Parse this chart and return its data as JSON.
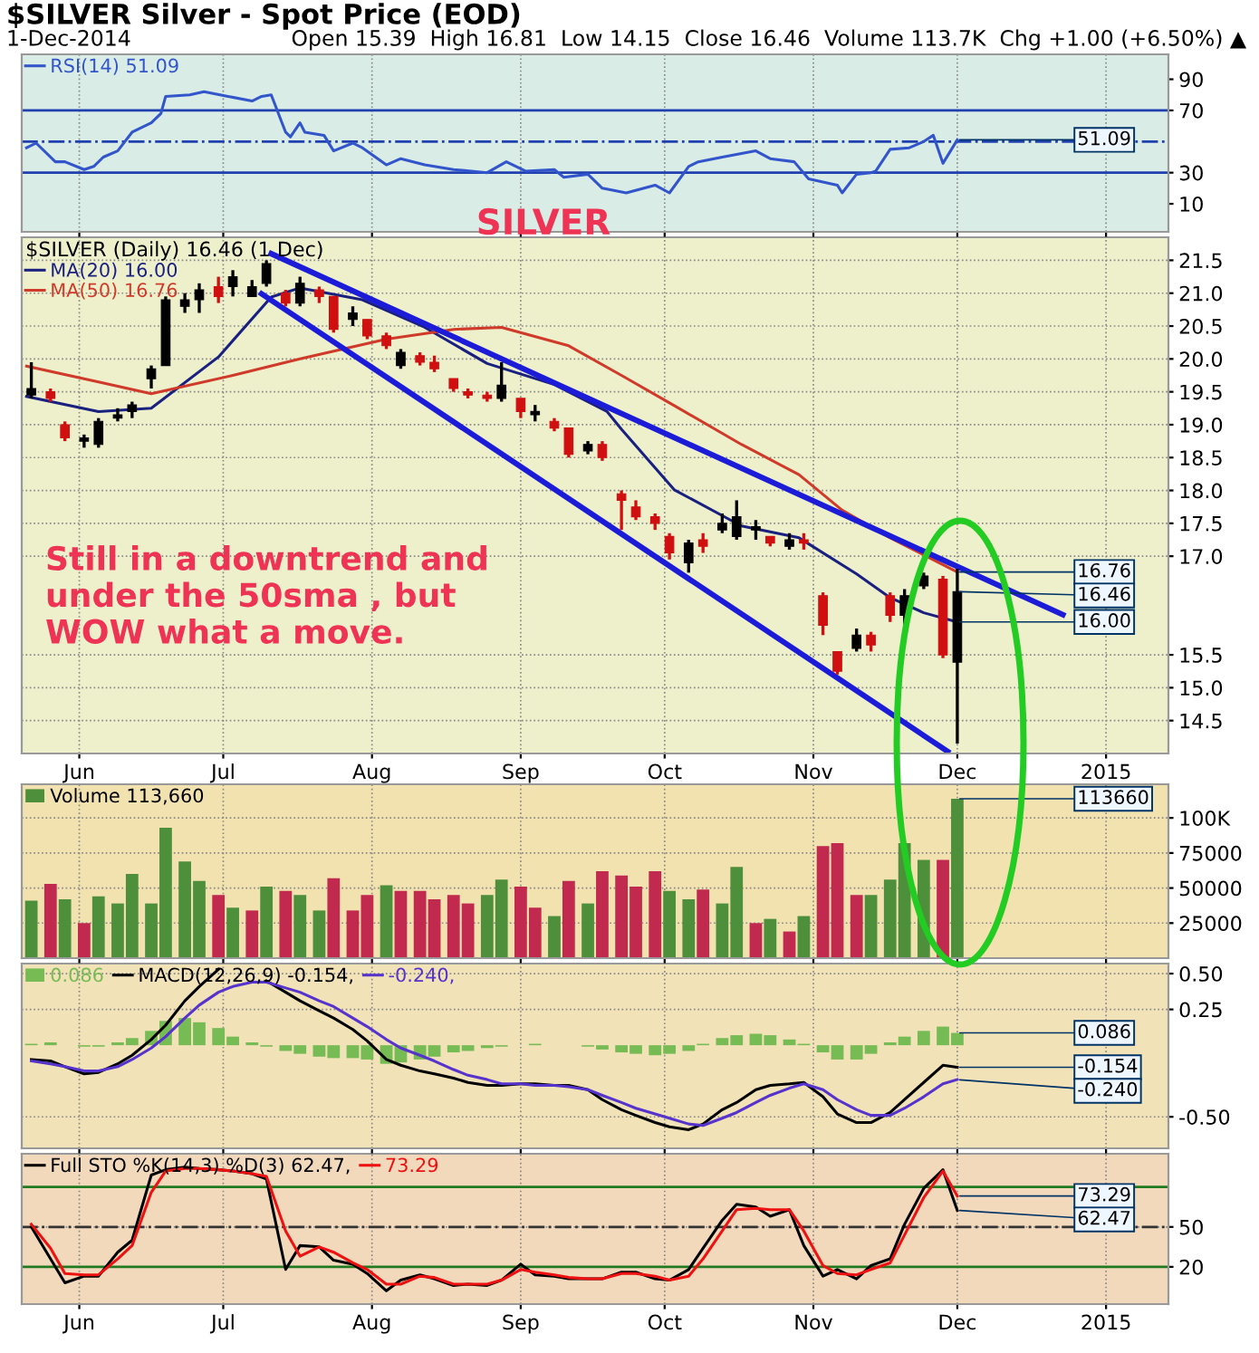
{
  "chart_data": [
    {
      "type": "line",
      "title": "$SILVER Silver - Spot Price (EOD)",
      "subtitle": "1-Dec-2014",
      "annotations": [
        "Open 15.39  High 16.81  Low 14.15  Close 16.46  Volume 113.7K  Chg +1.00 (+6.50%) ▲",
        "SILVER",
        {
          "text": "51.09",
          "x": "2014-12-01",
          "y": 51.09
        }
      ],
      "series": [
        {
          "name": "RSI(14) 51.09",
          "color": "#3355cc",
          "x": [
            "2014-05-21",
            "2014-05-23",
            "2014-05-27",
            "2014-05-29",
            "2014-06-02",
            "2014-06-04",
            "2014-06-06",
            "2014-06-09",
            "2014-06-12",
            "2014-06-16",
            "2014-06-18",
            "2014-06-19",
            "2014-06-24",
            "2014-06-27",
            "2014-07-02",
            "2014-07-07",
            "2014-07-09",
            "2014-07-11",
            "2014-07-14",
            "2014-07-15",
            "2014-07-17",
            "2014-07-18",
            "2014-07-22",
            "2014-07-24",
            "2014-07-28",
            "2014-07-30",
            "2014-08-04",
            "2014-08-07",
            "2014-08-12",
            "2014-08-18",
            "2014-08-25",
            "2014-08-29",
            "2014-09-02",
            "2014-09-08",
            "2014-09-10",
            "2014-09-15",
            "2014-09-18",
            "2014-09-23",
            "2014-09-29",
            "2014-10-02",
            "2014-10-06",
            "2014-10-08",
            "2014-10-13",
            "2014-10-20",
            "2014-10-23",
            "2014-10-28",
            "2014-10-31",
            "2014-11-06",
            "2014-11-07",
            "2014-11-10",
            "2014-11-13",
            "2014-11-14",
            "2014-11-17",
            "2014-11-21",
            "2014-11-24",
            "2014-11-26",
            "2014-11-28",
            "2014-12-01"
          ],
          "values": [
            46,
            49,
            37,
            37,
            32,
            34,
            40,
            44,
            56,
            62,
            68,
            79,
            80,
            82,
            79,
            76,
            79,
            80,
            56,
            53,
            62,
            56,
            54,
            44,
            49,
            46,
            35,
            39,
            35,
            32,
            30,
            37,
            31,
            32,
            27,
            29,
            20,
            17,
            22,
            17,
            34,
            37,
            40,
            44,
            39,
            37,
            26,
            22,
            17,
            29,
            30,
            31,
            45,
            46,
            50,
            54,
            36,
            51.09
          ]
        }
      ],
      "ref_lines": [
        {
          "axis": "y",
          "value": 70,
          "color": "#2040b0",
          "line_style": "solid"
        },
        {
          "axis": "y",
          "value": 30,
          "color": "#2040b0",
          "line_style": "solid"
        },
        {
          "axis": "y",
          "value": 50,
          "color": "#2040b0",
          "line_style": "dashed"
        }
      ],
      "xlim": [
        "2014-05-20",
        "2015-01-14"
      ],
      "xticks": [
        {
          "value": "2014-06-01",
          "label": null
        },
        {
          "value": "2014-07-01",
          "label": null
        },
        {
          "value": "2014-08-01",
          "label": null
        },
        {
          "value": "2014-09-01",
          "label": null
        },
        {
          "value": "2014-10-01",
          "label": null
        },
        {
          "value": "2014-11-01",
          "label": null
        },
        {
          "value": "2014-12-01",
          "label": null
        },
        {
          "value": "2015-01-01",
          "label": null
        }
      ],
      "ylim": [
        -8,
        106
      ],
      "yticks": [
        10,
        30,
        70,
        90
      ],
      "tick_labels": "y",
      "grid": "x",
      "legend": "top left"
    },
    {
      "type": "candlestick",
      "legend_title": "$SILVER (Daily) 16.46 (1 Dec)",
      "x": [
        "2014-05-22",
        "2014-05-26",
        "2014-05-29",
        "2014-06-02",
        "2014-06-05",
        "2014-06-09",
        "2014-06-12",
        "2014-06-16",
        "2014-06-19",
        "2014-06-23",
        "2014-06-26",
        "2014-06-30",
        "2014-07-03",
        "2014-07-07",
        "2014-07-10",
        "2014-07-14",
        "2014-07-17",
        "2014-07-21",
        "2014-07-24",
        "2014-07-28",
        "2014-07-31",
        "2014-08-04",
        "2014-08-07",
        "2014-08-11",
        "2014-08-14",
        "2014-08-18",
        "2014-08-21",
        "2014-08-25",
        "2014-08-28",
        "2014-09-01",
        "2014-09-04",
        "2014-09-08",
        "2014-09-11",
        "2014-09-15",
        "2014-09-18",
        "2014-09-22",
        "2014-09-25",
        "2014-09-29",
        "2014-10-02",
        "2014-10-06",
        "2014-10-09",
        "2014-10-13",
        "2014-10-16",
        "2014-10-20",
        "2014-10-23",
        "2014-10-27",
        "2014-10-30",
        "2014-11-03",
        "2014-11-06",
        "2014-11-10",
        "2014-11-13",
        "2014-11-17",
        "2014-11-20",
        "2014-11-24",
        "2014-11-28",
        "2014-12-01"
      ],
      "ohlc": [
        [
          19.45,
          19.95,
          19.4,
          19.55
        ],
        [
          19.5,
          19.55,
          19.35,
          19.4
        ],
        [
          19.0,
          19.05,
          18.75,
          18.8
        ],
        [
          18.75,
          18.85,
          18.65,
          18.8
        ],
        [
          18.7,
          19.1,
          18.65,
          19.05
        ],
        [
          19.1,
          19.25,
          19.05,
          19.15
        ],
        [
          19.2,
          19.35,
          19.1,
          19.3
        ],
        [
          19.7,
          19.9,
          19.55,
          19.85
        ],
        [
          19.9,
          20.95,
          19.9,
          20.9
        ],
        [
          20.8,
          21.0,
          20.7,
          20.9
        ],
        [
          20.9,
          21.15,
          20.7,
          21.05
        ],
        [
          21.1,
          21.25,
          20.85,
          20.95
        ],
        [
          21.1,
          21.35,
          20.95,
          21.25
        ],
        [
          20.95,
          21.2,
          20.95,
          21.1
        ],
        [
          21.15,
          21.5,
          21.1,
          21.45
        ],
        [
          21.0,
          21.05,
          20.8,
          20.85
        ],
        [
          20.85,
          21.25,
          20.8,
          21.15
        ],
        [
          21.05,
          21.1,
          20.85,
          20.95
        ],
        [
          20.95,
          20.95,
          20.4,
          20.45
        ],
        [
          20.6,
          20.8,
          20.5,
          20.7
        ],
        [
          20.6,
          20.6,
          20.3,
          20.35
        ],
        [
          20.35,
          20.4,
          20.15,
          20.2
        ],
        [
          19.9,
          20.15,
          19.85,
          20.1
        ],
        [
          20.05,
          20.1,
          19.9,
          19.95
        ],
        [
          19.95,
          20.05,
          19.8,
          19.85
        ],
        [
          19.7,
          19.7,
          19.5,
          19.55
        ],
        [
          19.5,
          19.55,
          19.4,
          19.45
        ],
        [
          19.45,
          19.5,
          19.35,
          19.4
        ],
        [
          19.4,
          19.95,
          19.35,
          19.6
        ],
        [
          19.4,
          19.4,
          19.1,
          19.2
        ],
        [
          19.15,
          19.3,
          19.05,
          19.2
        ],
        [
          19.05,
          19.1,
          18.9,
          18.95
        ],
        [
          18.95,
          18.95,
          18.5,
          18.55
        ],
        [
          18.6,
          18.75,
          18.55,
          18.7
        ],
        [
          18.7,
          18.75,
          18.45,
          18.5
        ],
        [
          17.95,
          18.0,
          17.4,
          17.85
        ],
        [
          17.75,
          17.85,
          17.55,
          17.6
        ],
        [
          17.6,
          17.65,
          17.4,
          17.5
        ],
        [
          17.3,
          17.35,
          16.95,
          17.05
        ],
        [
          16.9,
          17.25,
          16.75,
          17.2
        ],
        [
          17.25,
          17.35,
          17.05,
          17.15
        ],
        [
          17.4,
          17.65,
          17.35,
          17.5
        ],
        [
          17.3,
          17.85,
          17.25,
          17.6
        ],
        [
          17.4,
          17.55,
          17.25,
          17.45
        ],
        [
          17.3,
          17.3,
          17.15,
          17.2
        ],
        [
          17.15,
          17.35,
          17.1,
          17.25
        ],
        [
          17.25,
          17.35,
          17.1,
          17.2
        ],
        [
          16.4,
          16.45,
          15.8,
          15.95
        ],
        [
          15.55,
          15.55,
          15.2,
          15.25
        ],
        [
          15.6,
          15.9,
          15.55,
          15.8
        ],
        [
          15.8,
          15.85,
          15.55,
          15.65
        ],
        [
          16.4,
          16.45,
          16.0,
          16.1
        ],
        [
          16.1,
          16.5,
          15.95,
          16.4
        ],
        [
          16.55,
          16.75,
          16.5,
          16.7
        ],
        [
          16.65,
          16.7,
          15.45,
          15.5
        ],
        [
          15.39,
          16.81,
          14.15,
          16.46
        ]
      ],
      "series": [
        {
          "name": "MA(20) 16.00",
          "type": "line",
          "color": "#1a2080",
          "x": [
            "2014-05-21",
            "2014-06-05",
            "2014-06-16",
            "2014-06-30",
            "2014-07-11",
            "2014-07-17",
            "2014-07-30",
            "2014-08-12",
            "2014-08-25",
            "2014-09-08",
            "2014-09-19",
            "2014-09-22",
            "2014-10-03",
            "2014-10-17",
            "2014-10-29",
            "2014-11-10",
            "2014-11-17",
            "2014-11-24",
            "2014-12-01"
          ],
          "values": [
            19.43,
            19.2,
            19.25,
            20.03,
            20.94,
            21.08,
            20.9,
            20.48,
            19.93,
            19.61,
            19.2,
            18.93,
            18.01,
            17.46,
            17.28,
            16.73,
            16.37,
            16.14,
            16.0
          ]
        },
        {
          "name": "MA(50) 16.76",
          "type": "line",
          "color": "#d03a2a",
          "x": [
            "2014-05-21",
            "2014-06-05",
            "2014-06-16",
            "2014-07-03",
            "2014-07-17",
            "2014-08-04",
            "2014-08-18",
            "2014-08-28",
            "2014-09-11",
            "2014-09-22",
            "2014-10-03",
            "2014-10-17",
            "2014-10-29",
            "2014-11-07",
            "2014-11-17",
            "2014-12-01"
          ],
          "values": [
            19.89,
            19.65,
            19.47,
            19.75,
            20.0,
            20.3,
            20.45,
            20.48,
            20.2,
            19.75,
            19.29,
            18.7,
            18.24,
            17.7,
            17.28,
            16.76
          ]
        },
        {
          "type": "line",
          "color": "#1c1cd8",
          "x": [
            "2014-07-11",
            "2014-12-23"
          ],
          "values": [
            21.6,
            16.11
          ]
        },
        {
          "type": "line",
          "color": "#1c1cd8",
          "x": [
            "2014-07-09",
            "2014-11-29"
          ],
          "values": [
            20.99,
            14.03
          ]
        }
      ],
      "annotations": [
        "Still in a downtrend and\nunder the 50sma , but\nWOW what a move.",
        {
          "text": "16.76",
          "x": "2014-12-01",
          "y": 16.76
        },
        {
          "text": "16.46",
          "x": "2014-12-01",
          "y": 16.46
        },
        {
          "text": "16.00",
          "x": "2014-12-01",
          "y": 16.0
        }
      ],
      "xlim": [
        "2014-05-20",
        "2015-01-14"
      ],
      "xticks": [
        {
          "value": "2014-06-01",
          "label": "Jun"
        },
        {
          "value": "2014-07-01",
          "label": "Jul"
        },
        {
          "value": "2014-08-01",
          "label": "Aug"
        },
        {
          "value": "2014-09-01",
          "label": "Sep"
        },
        {
          "value": "2014-10-01",
          "label": "Oct"
        },
        {
          "value": "2014-11-01",
          "label": "Nov"
        },
        {
          "value": "2014-12-01",
          "label": "Dec"
        },
        {
          "value": "2015-01-01",
          "label": "2015"
        }
      ],
      "ylim": [
        14.0,
        21.85
      ],
      "yticks": [
        14.5,
        {
          "value": 15,
          "label": "15.0"
        },
        15.5,
        {
          "value": 17,
          "label": "17.0"
        },
        17.5,
        {
          "value": 18,
          "label": "18.0"
        },
        18.5,
        {
          "value": 19,
          "label": "19.0"
        },
        19.5,
        {
          "value": 20,
          "label": "20.0"
        },
        20.5,
        {
          "value": 21,
          "label": "21.0"
        },
        21.5
      ],
      "grid": true,
      "legend": "top left"
    },
    {
      "type": "bar",
      "x": [
        "2014-05-22",
        "2014-05-26",
        "2014-05-29",
        "2014-06-02",
        "2014-06-05",
        "2014-06-09",
        "2014-06-12",
        "2014-06-16",
        "2014-06-19",
        "2014-06-23",
        "2014-06-26",
        "2014-06-30",
        "2014-07-03",
        "2014-07-07",
        "2014-07-10",
        "2014-07-14",
        "2014-07-17",
        "2014-07-21",
        "2014-07-24",
        "2014-07-28",
        "2014-07-31",
        "2014-08-04",
        "2014-08-07",
        "2014-08-11",
        "2014-08-14",
        "2014-08-18",
        "2014-08-21",
        "2014-08-25",
        "2014-08-28",
        "2014-09-01",
        "2014-09-04",
        "2014-09-08",
        "2014-09-11",
        "2014-09-15",
        "2014-09-18",
        "2014-09-22",
        "2014-09-25",
        "2014-09-29",
        "2014-10-02",
        "2014-10-06",
        "2014-10-09",
        "2014-10-13",
        "2014-10-16",
        "2014-10-20",
        "2014-10-23",
        "2014-10-27",
        "2014-10-30",
        "2014-11-03",
        "2014-11-06",
        "2014-11-10",
        "2014-11-13",
        "2014-11-17",
        "2014-11-20",
        "2014-11-24",
        "2014-11-28",
        "2014-12-01"
      ],
      "series": [
        {
          "name": "Volume 113,660",
          "values": [
            41000,
            53000,
            42000,
            25000,
            44000,
            39000,
            60000,
            39000,
            93000,
            69000,
            55000,
            45000,
            36000,
            34000,
            51000,
            48000,
            45000,
            34000,
            57000,
            34000,
            45000,
            52000,
            48000,
            48000,
            42000,
            45000,
            39000,
            45000,
            56000,
            51000,
            36000,
            30000,
            55000,
            39000,
            62000,
            59000,
            51000,
            62000,
            48000,
            42000,
            49000,
            39000,
            65000,
            25000,
            28000,
            19000,
            30000,
            80000,
            82000,
            45000,
            45000,
            56000,
            82000,
            70000,
            70000,
            113660
          ],
          "colors": [
            "#4e8f3c",
            "#c2294f",
            "#4e8f3c",
            "#c2294f",
            "#4e8f3c",
            "#4e8f3c",
            "#4e8f3c",
            "#4e8f3c",
            "#4e8f3c",
            "#4e8f3c",
            "#4e8f3c",
            "#c2294f",
            "#4e8f3c",
            "#c2294f",
            "#4e8f3c",
            "#c2294f",
            "#4e8f3c",
            "#4e8f3c",
            "#c2294f",
            "#c2294f",
            "#c2294f",
            "#4e8f3c",
            "#c2294f",
            "#c2294f",
            "#c2294f",
            "#c2294f",
            "#c2294f",
            "#4e8f3c",
            "#4e8f3c",
            "#c2294f",
            "#c2294f",
            "#4e8f3c",
            "#c2294f",
            "#4e8f3c",
            "#c2294f",
            "#c2294f",
            "#c2294f",
            "#c2294f",
            "#4e8f3c",
            "#4e8f3c",
            "#c2294f",
            "#4e8f3c",
            "#4e8f3c",
            "#c2294f",
            "#4e8f3c",
            "#c2294f",
            "#4e8f3c",
            "#c2294f",
            "#c2294f",
            "#c2294f",
            "#4e8f3c",
            "#4e8f3c",
            "#4e8f3c",
            "#4e8f3c",
            "#c2294f",
            "#4e8f3c"
          ]
        }
      ],
      "annotations": [
        {
          "text": "113660",
          "x": "2014-12-01",
          "y": 113660
        }
      ],
      "xlim": [
        "2014-05-20",
        "2015-01-14"
      ],
      "xticks": [
        {
          "value": "2014-06-01",
          "label": null
        },
        {
          "value": "2014-07-01",
          "label": null
        },
        {
          "value": "2014-08-01",
          "label": null
        },
        {
          "value": "2014-09-01",
          "label": null
        },
        {
          "value": "2014-10-01",
          "label": null
        },
        {
          "value": "2014-11-01",
          "label": null
        },
        {
          "value": "2014-12-01",
          "label": null
        },
        {
          "value": "2015-01-01",
          "label": null
        }
      ],
      "ylim": [
        0,
        124000
      ],
      "yticks": [
        25000,
        50000,
        75000,
        {
          "value": 100000,
          "label": "100K"
        }
      ],
      "tick_labels": "y",
      "grid": true,
      "legend": "top left"
    },
    {
      "type": "line",
      "x": [
        "2014-05-22",
        "2014-05-26",
        "2014-05-29",
        "2014-06-02",
        "2014-06-05",
        "2014-06-09",
        "2014-06-12",
        "2014-06-16",
        "2014-06-19",
        "2014-06-23",
        "2014-06-26",
        "2014-06-30",
        "2014-07-03",
        "2014-07-07",
        "2014-07-10",
        "2014-07-14",
        "2014-07-17",
        "2014-07-21",
        "2014-07-24",
        "2014-07-28",
        "2014-07-31",
        "2014-08-04",
        "2014-08-07",
        "2014-08-11",
        "2014-08-14",
        "2014-08-18",
        "2014-08-21",
        "2014-08-25",
        "2014-08-28",
        "2014-09-01",
        "2014-09-04",
        "2014-09-08",
        "2014-09-11",
        "2014-09-15",
        "2014-09-18",
        "2014-09-22",
        "2014-09-25",
        "2014-09-29",
        "2014-10-02",
        "2014-10-06",
        "2014-10-09",
        "2014-10-13",
        "2014-10-16",
        "2014-10-20",
        "2014-10-23",
        "2014-10-27",
        "2014-10-30",
        "2014-11-03",
        "2014-11-06",
        "2014-11-10",
        "2014-11-13",
        "2014-11-17",
        "2014-11-20",
        "2014-11-24",
        "2014-11-28",
        "2014-12-01"
      ],
      "series": [
        {
          "name": "0.086",
          "type": "bar",
          "color": "#77bb55",
          "values": [
            0.01,
            0.02,
            0.0,
            -0.01,
            -0.01,
            0.02,
            0.05,
            0.1,
            0.17,
            0.19,
            0.16,
            0.12,
            0.06,
            0.02,
            -0.01,
            -0.04,
            -0.06,
            -0.08,
            -0.09,
            -0.09,
            -0.1,
            -0.13,
            -0.12,
            -0.1,
            -0.08,
            -0.05,
            -0.04,
            -0.02,
            -0.01,
            0.0,
            0.01,
            0.0,
            0.0,
            -0.01,
            -0.03,
            -0.05,
            -0.06,
            -0.07,
            -0.06,
            -0.04,
            0.01,
            0.05,
            0.07,
            0.08,
            0.07,
            0.04,
            0.01,
            -0.05,
            -0.1,
            -0.1,
            -0.06,
            0.02,
            0.06,
            0.1,
            0.13,
            0.086
          ]
        },
        {
          "name": "MACD(12,26,9) -0.154,",
          "color": "#000000",
          "values": [
            -0.1,
            -0.11,
            -0.15,
            -0.2,
            -0.19,
            -0.13,
            -0.07,
            0.04,
            0.14,
            0.31,
            0.41,
            0.53,
            null,
            null,
            0.45,
            0.37,
            0.31,
            0.24,
            0.19,
            0.11,
            0.03,
            -0.1,
            -0.14,
            -0.18,
            -0.2,
            -0.23,
            -0.26,
            -0.28,
            -0.28,
            -0.27,
            -0.27,
            -0.28,
            -0.28,
            -0.31,
            -0.38,
            -0.45,
            -0.49,
            -0.54,
            -0.57,
            -0.59,
            -0.55,
            -0.45,
            -0.4,
            -0.31,
            -0.28,
            -0.27,
            -0.26,
            -0.36,
            -0.48,
            -0.54,
            -0.54,
            -0.47,
            -0.38,
            -0.26,
            -0.14,
            -0.154
          ]
        },
        {
          "name": "-0.240,",
          "color": "#5533cc",
          "values": [
            -0.11,
            -0.13,
            -0.15,
            -0.18,
            -0.18,
            -0.15,
            -0.1,
            -0.02,
            0.06,
            0.19,
            0.28,
            0.37,
            0.41,
            0.44,
            0.44,
            0.4,
            0.37,
            0.31,
            0.27,
            0.19,
            0.13,
            0.04,
            -0.02,
            -0.07,
            -0.11,
            -0.17,
            -0.21,
            -0.24,
            -0.27,
            -0.27,
            -0.28,
            -0.28,
            -0.29,
            -0.31,
            -0.35,
            -0.4,
            -0.44,
            -0.48,
            -0.51,
            -0.55,
            -0.56,
            -0.51,
            -0.47,
            -0.4,
            -0.35,
            -0.3,
            -0.27,
            -0.31,
            -0.38,
            -0.45,
            -0.49,
            -0.49,
            -0.44,
            -0.36,
            -0.27,
            -0.24
          ]
        }
      ],
      "annotations": [
        {
          "text": "0.086",
          "x": "2014-12-01",
          "y": 0.086
        },
        {
          "text": "-0.154",
          "x": "2014-12-01",
          "y": -0.154
        },
        {
          "text": "-0.240",
          "x": "2014-12-01",
          "y": -0.24
        }
      ],
      "xlim": [
        "2014-05-20",
        "2015-01-14"
      ],
      "xticks": [
        {
          "value": "2014-06-01",
          "label": null
        },
        {
          "value": "2014-07-01",
          "label": null
        },
        {
          "value": "2014-08-01",
          "label": null
        },
        {
          "value": "2014-09-01",
          "label": null
        },
        {
          "value": "2014-10-01",
          "label": null
        },
        {
          "value": "2014-11-01",
          "label": null
        },
        {
          "value": "2014-12-01",
          "label": null
        },
        {
          "value": "2015-01-01",
          "label": null
        }
      ],
      "ylim": [
        -0.72,
        0.57
      ],
      "yticks": [
        {
          "value": 0.5,
          "label": "0.50"
        },
        0.25,
        {
          "value": -0.5,
          "label": "-0.50"
        }
      ],
      "tick_labels": "y",
      "grid": true,
      "legend": "top left"
    },
    {
      "type": "line",
      "x": [
        "2014-05-22",
        "2014-05-26",
        "2014-05-29",
        "2014-06-02",
        "2014-06-05",
        "2014-06-09",
        "2014-06-12",
        "2014-06-16",
        "2014-06-19",
        "2014-06-23",
        "2014-06-26",
        "2014-06-30",
        "2014-07-03",
        "2014-07-07",
        "2014-07-10",
        "2014-07-14",
        "2014-07-17",
        "2014-07-21",
        "2014-07-24",
        "2014-07-28",
        "2014-07-31",
        "2014-08-04",
        "2014-08-07",
        "2014-08-11",
        "2014-08-14",
        "2014-08-18",
        "2014-08-21",
        "2014-08-25",
        "2014-08-28",
        "2014-09-01",
        "2014-09-04",
        "2014-09-08",
        "2014-09-11",
        "2014-09-15",
        "2014-09-18",
        "2014-09-22",
        "2014-09-25",
        "2014-09-29",
        "2014-10-02",
        "2014-10-06",
        "2014-10-09",
        "2014-10-13",
        "2014-10-16",
        "2014-10-20",
        "2014-10-23",
        "2014-10-27",
        "2014-10-30",
        "2014-11-03",
        "2014-11-06",
        "2014-11-10",
        "2014-11-13",
        "2014-11-17",
        "2014-11-20",
        "2014-11-24",
        "2014-11-28",
        "2014-12-01"
      ],
      "series": [
        {
          "name": "Full STO %K(14,3) %D(3) 62.47,",
          "color": "#000000",
          "values": [
            50,
            26,
            8,
            13,
            13,
            31,
            40,
            89,
            93,
            95,
            94,
            93,
            92,
            90,
            86,
            18,
            36,
            35,
            25,
            22,
            15,
            2,
            10,
            14,
            11,
            6,
            7,
            6,
            10,
            22,
            14,
            13,
            11,
            11,
            11,
            16,
            16,
            11,
            10,
            18,
            34,
            55,
            67,
            65,
            58,
            63,
            36,
            13,
            18,
            11,
            21,
            26,
            52,
            79,
            93,
            62.47
          ]
        },
        {
          "name": "73.29",
          "color": "#ee1111",
          "values": [
            52,
            34,
            15,
            14,
            14,
            26,
            36,
            76,
            92,
            94,
            94,
            93,
            92,
            90,
            88,
            47,
            28,
            35,
            31,
            23,
            18,
            7,
            7,
            13,
            12,
            7,
            7,
            7,
            10,
            18,
            16,
            14,
            12,
            11,
            11,
            15,
            15,
            13,
            10,
            13,
            26,
            47,
            63,
            64,
            63,
            63,
            47,
            21,
            15,
            14,
            18,
            23,
            44,
            72,
            92,
            73.29
          ]
        }
      ],
      "ref_lines": [
        {
          "axis": "y",
          "value": 80,
          "color": "#207a20",
          "line_style": "solid"
        },
        {
          "axis": "y",
          "value": 20,
          "color": "#207a20",
          "line_style": "solid"
        },
        {
          "axis": "y",
          "value": 50,
          "color": "#333333",
          "line_style": "dashed"
        }
      ],
      "annotations": [
        {
          "text": "73.29",
          "x": "2014-12-01",
          "y": 73.29
        },
        {
          "text": "62.47",
          "x": "2014-12-01",
          "y": 62.47
        }
      ],
      "xlim": [
        "2014-05-20",
        "2015-01-14"
      ],
      "xticks": [
        {
          "value": "2014-06-01",
          "label": "Jun"
        },
        {
          "value": "2014-07-01",
          "label": "Jul"
        },
        {
          "value": "2014-08-01",
          "label": "Aug"
        },
        {
          "value": "2014-09-01",
          "label": "Sep"
        },
        {
          "value": "2014-10-01",
          "label": "Oct"
        },
        {
          "value": "2014-11-01",
          "label": "Nov"
        },
        {
          "value": "2014-12-01",
          "label": "Dec"
        },
        {
          "value": "2015-01-01",
          "label": "2015"
        }
      ],
      "ylim": [
        -8,
        105
      ],
      "yticks": [
        20,
        50
      ],
      "grid": true,
      "legend": "top left"
    }
  ]
}
